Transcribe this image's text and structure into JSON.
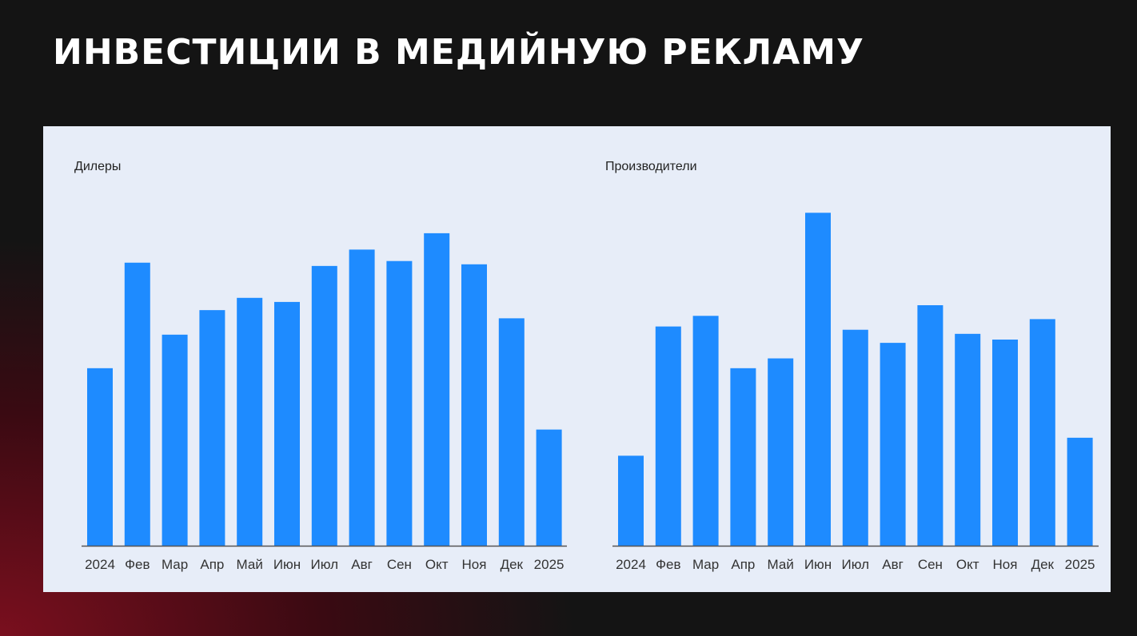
{
  "page": {
    "title": "ИНВЕСТИЦИИ В МЕДИЙНУЮ РЕКЛАМУ"
  },
  "colors": {
    "bar": "#1e8bff",
    "panel": "#e7edf8",
    "axis": "#555555"
  },
  "chart_data": [
    {
      "type": "bar",
      "title": "Дилеры",
      "categories": [
        "2024",
        "Фев",
        "Мар",
        "Апр",
        "Май",
        "Июн",
        "Июл",
        "Авг",
        "Сен",
        "Окт",
        "Ноя",
        "Дек",
        "2025"
      ],
      "values": [
        217,
        346,
        258,
        288,
        303,
        298,
        342,
        362,
        348,
        382,
        344,
        278,
        142
      ],
      "ylim": [
        0,
        420
      ],
      "grid": false,
      "legend": "none"
    },
    {
      "type": "bar",
      "title": "Производители",
      "categories": [
        "2024",
        "Фев",
        "Мар",
        "Апр",
        "Май",
        "Июн",
        "Июл",
        "Авг",
        "Сен",
        "Окт",
        "Ноя",
        "Дек",
        "2025"
      ],
      "values": [
        110,
        268,
        281,
        217,
        229,
        407,
        264,
        248,
        294,
        259,
        252,
        277,
        132
      ],
      "ylim": [
        0,
        420
      ],
      "grid": false,
      "legend": "none"
    }
  ]
}
